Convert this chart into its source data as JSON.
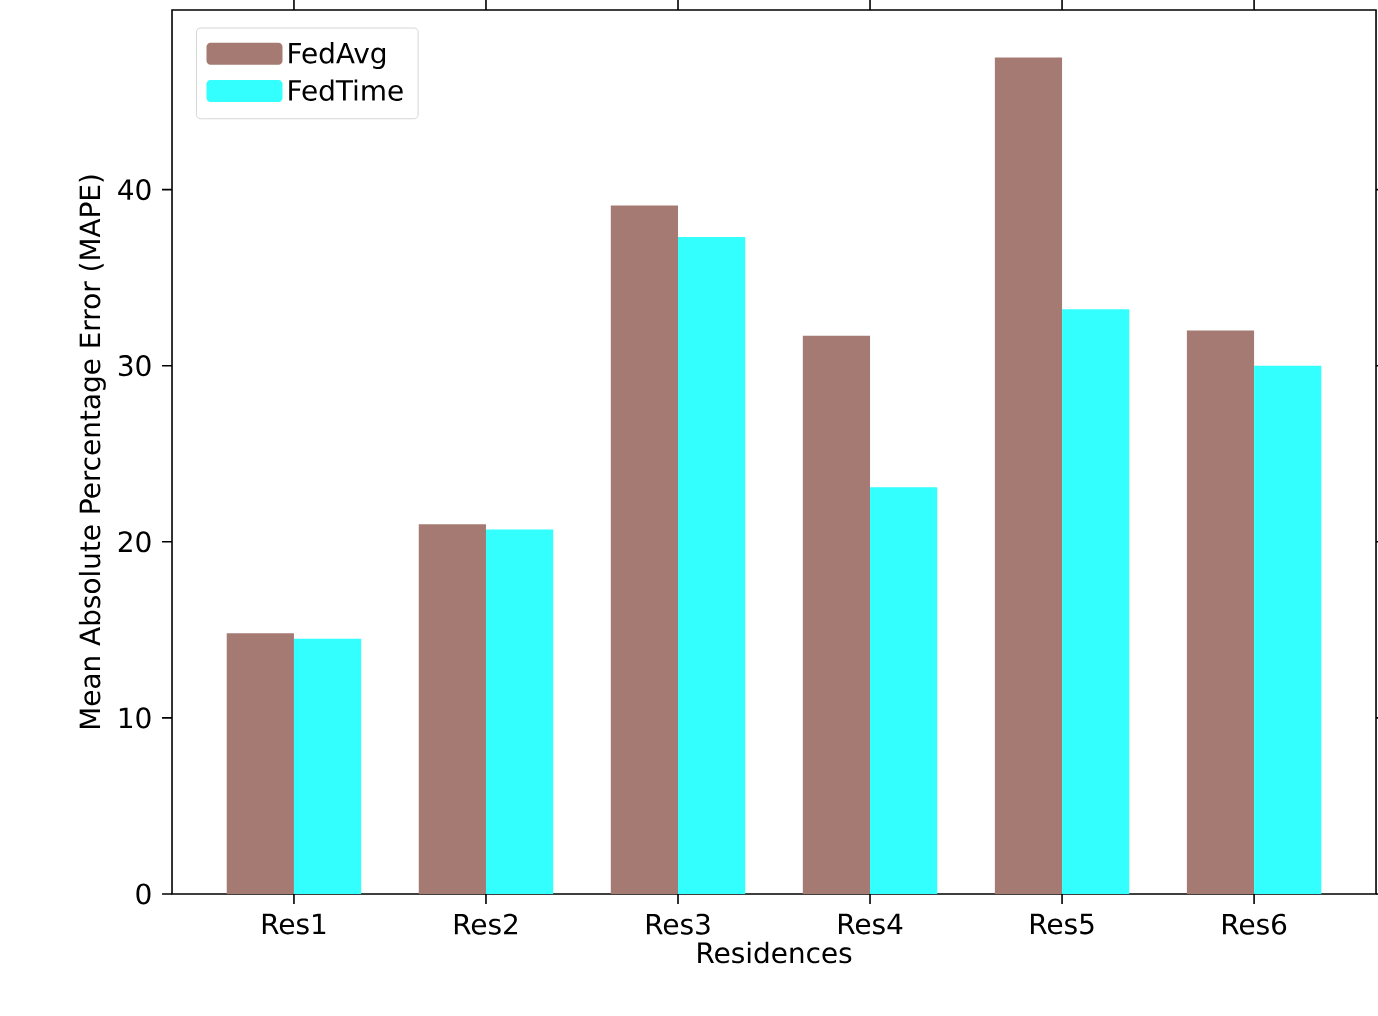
{
  "chart_data": {
    "type": "bar",
    "xlabel": "Residences",
    "ylabel": "Mean Absolute Percentage Error (MAPE)",
    "categories": [
      "Res1",
      "Res2",
      "Res3",
      "Res4",
      "Res5",
      "Res6"
    ],
    "series": [
      {
        "name": "FedAvg",
        "color": "#a47a72",
        "values": [
          14.8,
          21.0,
          39.1,
          31.7,
          47.5,
          32.0
        ]
      },
      {
        "name": "FedTime",
        "color": "#33ffff",
        "values": [
          14.5,
          20.7,
          37.3,
          23.1,
          33.2,
          30.0
        ]
      }
    ],
    "ylim": [
      0,
      50.2
    ],
    "yticks": [
      0,
      10,
      20,
      30,
      40
    ],
    "legend": "top left",
    "grid": false
  }
}
